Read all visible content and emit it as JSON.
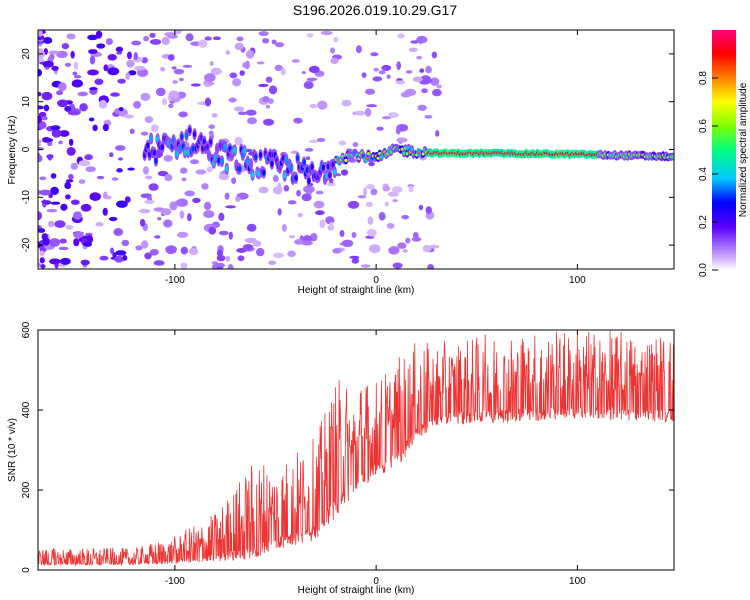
{
  "title": "S196.2026.019.10.29.G17",
  "chart_data": [
    {
      "type": "heatmap",
      "xlabel": "Height of straight line (km)",
      "ylabel": "Frequency (Hz)",
      "xlim": [
        -168,
        148
      ],
      "ylim": [
        -25,
        25
      ],
      "xticks": [
        -100,
        0,
        100
      ],
      "yticks": [
        -20,
        -10,
        0,
        10,
        20
      ],
      "colorbar": {
        "label": "Normalized spectral amplitude",
        "range": [
          0,
          1
        ],
        "ticks": [
          0.0,
          0.2,
          0.4,
          0.6,
          0.8
        ],
        "tick_labels": [
          "0.0",
          "0.2",
          "0.4",
          "0.6",
          "0.8"
        ]
      },
      "ridge": [
        {
          "x": -110,
          "f": 0
        },
        {
          "x": -90,
          "f": 2
        },
        {
          "x": -80,
          "f": -1
        },
        {
          "x": -60,
          "f": -3
        },
        {
          "x": -40,
          "f": -4
        },
        {
          "x": -30,
          "f": -6
        },
        {
          "x": -20,
          "f": -2
        },
        {
          "x": -10,
          "f": -1
        },
        {
          "x": 0,
          "f": -2
        },
        {
          "x": 10,
          "f": 0
        },
        {
          "x": 30,
          "f": -0.8
        },
        {
          "x": 60,
          "f": -0.8
        },
        {
          "x": 100,
          "f": -1
        },
        {
          "x": 148,
          "f": -1.5
        }
      ]
    },
    {
      "type": "line",
      "xlabel": "Height of straight line (km)",
      "ylabel": "SNR (10 * v/v)",
      "xlim": [
        -168,
        148
      ],
      "ylim": [
        0,
        600
      ],
      "xticks": [
        -100,
        0,
        100
      ],
      "yticks": [
        0,
        200,
        400,
        600
      ],
      "series": [
        {
          "name": "SNR",
          "color": "#ee3333",
          "envelope": [
            {
              "x": -168,
              "base": 18,
              "amp": 25
            },
            {
              "x": -120,
              "base": 18,
              "amp": 25
            },
            {
              "x": -100,
              "base": 25,
              "amp": 40
            },
            {
              "x": -80,
              "base": 40,
              "amp": 70
            },
            {
              "x": -60,
              "base": 60,
              "amp": 150
            },
            {
              "x": -45,
              "base": 90,
              "amp": 130
            },
            {
              "x": -30,
              "base": 110,
              "amp": 150
            },
            {
              "x": -20,
              "base": 180,
              "amp": 200
            },
            {
              "x": -10,
              "base": 230,
              "amp": 170
            },
            {
              "x": 0,
              "base": 270,
              "amp": 140
            },
            {
              "x": 10,
              "base": 290,
              "amp": 160
            },
            {
              "x": 20,
              "base": 360,
              "amp": 140
            },
            {
              "x": 30,
              "base": 390,
              "amp": 120
            },
            {
              "x": 60,
              "base": 400,
              "amp": 130
            },
            {
              "x": 100,
              "base": 410,
              "amp": 130
            },
            {
              "x": 148,
              "base": 400,
              "amp": 130
            }
          ]
        }
      ]
    }
  ]
}
